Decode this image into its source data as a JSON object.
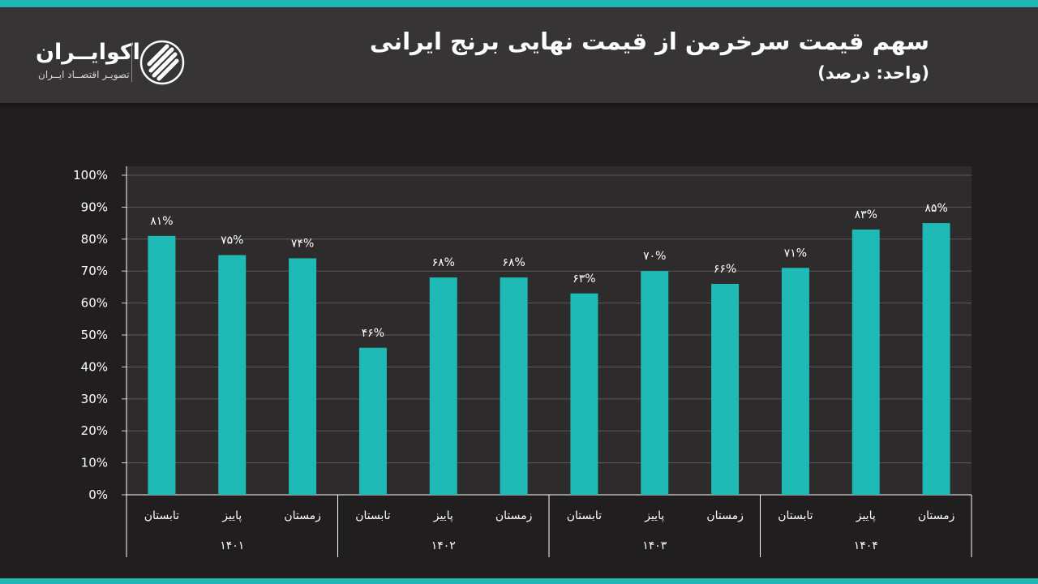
{
  "header": {
    "title": "سهم قیمت سرخرمن از قیمت نهایی برنج ایرانی",
    "subtitle": "(واحد: درصد)"
  },
  "brand": {
    "name": "اکوایــران",
    "tagline": "تصویـر اقتصــاد ایــران",
    "logo_icon": "ecoiran-logo-icon"
  },
  "colors": {
    "accent": "#1fb8b5",
    "bar": "#20bab6",
    "background": "#201e1f",
    "plot_background": "#2d2b2c",
    "header_background": "#363435"
  },
  "chart_data": {
    "type": "bar",
    "title": "سهم قیمت سرخرمن از قیمت نهایی برنج ایرانی",
    "subtitle": "(واحد: درصد)",
    "y_ticks": [
      "100%",
      "90%",
      "80%",
      "70%",
      "60%",
      "50%",
      "40%",
      "30%",
      "20%",
      "10%",
      "0%"
    ],
    "ylim": [
      0,
      100
    ],
    "grid": true,
    "groups": [
      {
        "year": "۱۴۰۱",
        "bars": [
          {
            "season": "تابستان",
            "value": 81,
            "label": "۸۱%"
          },
          {
            "season": "پاییز",
            "value": 75,
            "label": "۷۵%"
          },
          {
            "season": "زمستان",
            "value": 74,
            "label": "۷۴%"
          }
        ]
      },
      {
        "year": "۱۴۰۲",
        "bars": [
          {
            "season": "تابستان",
            "value": 46,
            "label": "۴۶%"
          },
          {
            "season": "پاییز",
            "value": 68,
            "label": "۶۸%"
          },
          {
            "season": "زمستان",
            "value": 68,
            "label": "۶۸%"
          }
        ]
      },
      {
        "year": "۱۴۰۳",
        "bars": [
          {
            "season": "تابستان",
            "value": 63,
            "label": "۶۳%"
          },
          {
            "season": "پاییز",
            "value": 70,
            "label": "۷۰%"
          },
          {
            "season": "زمستان",
            "value": 66,
            "label": "۶۶%"
          }
        ]
      },
      {
        "year": "۱۴۰۴",
        "bars": [
          {
            "season": "تابستان",
            "value": 71,
            "label": "۷۱%"
          },
          {
            "season": "پاییز",
            "value": 83,
            "label": "۸۳%"
          },
          {
            "season": "زمستان",
            "value": 85,
            "label": "۸۵%"
          }
        ]
      }
    ]
  }
}
